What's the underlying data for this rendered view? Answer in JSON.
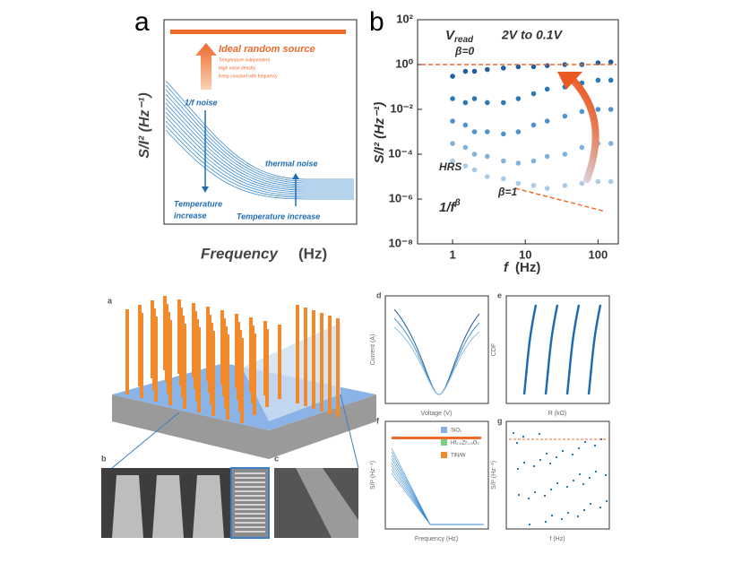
{
  "panel_a": {
    "label": "a",
    "title": "Ideal random source",
    "notes": [
      "Temperature independent",
      "High noise density",
      "Keep constant with frequency"
    ],
    "flicker": "1/f noise",
    "thermal": "thermal noise",
    "temp_left": [
      "Temperature",
      "increase"
    ],
    "temp_right": "Temperature increase",
    "y_label": "S/I² (Hz⁻¹)",
    "x_label": "Frequency",
    "x_unit": "(Hz)"
  },
  "panel_b": {
    "type": "scatter",
    "label": "b",
    "y_label": "S/I² (Hz⁻¹)",
    "x_label": "f",
    "x_unit": "(Hz)",
    "log_x": true,
    "log_y": true,
    "annotations": {
      "vread": "V",
      "vread_sub": "read",
      "range": "2V to 0.1V",
      "beta0": "β=0",
      "hrs": "HRS",
      "beta1": "β=1",
      "flicker": "1/f",
      "flicker_sup": "β"
    },
    "xlim": [
      0.33,
      190
    ],
    "ylim": [
      1e-08,
      100
    ],
    "xticks": [
      1,
      10,
      100
    ],
    "yticks": [
      {
        "value": 100,
        "label": "10²"
      },
      {
        "value": 1,
        "label": "10⁰"
      },
      {
        "value": 0.01,
        "label": "10⁻²"
      },
      {
        "value": 0.0001,
        "label": "10⁻⁴"
      },
      {
        "value": 1e-06,
        "label": "10⁻⁶"
      },
      {
        "value": 1e-08,
        "label": "10⁻⁸"
      }
    ],
    "x": [
      1,
      1.5,
      2,
      3,
      5,
      8,
      13,
      20,
      35,
      60,
      100,
      150
    ],
    "series": [
      {
        "color": "#1f5f9e",
        "values": [
          0.3,
          0.5,
          0.5,
          0.6,
          0.7,
          0.8,
          0.8,
          0.9,
          1,
          1,
          1.2,
          1.3
        ]
      },
      {
        "color": "#2a78b8",
        "values": [
          0.03,
          0.02,
          0.03,
          0.02,
          0.02,
          0.03,
          0.05,
          0.08,
          0.1,
          0.15,
          0.2,
          0.2
        ]
      },
      {
        "color": "#4f93cc",
        "values": [
          0.003,
          0.002,
          0.001,
          0.001,
          0.0008,
          0.001,
          0.002,
          0.003,
          0.005,
          0.008,
          0.01,
          0.01
        ]
      },
      {
        "color": "#7fb3dd",
        "values": [
          0.0003,
          0.0002,
          0.0001,
          8e-05,
          5e-05,
          4e-05,
          5e-05,
          8e-05,
          0.0001,
          0.0002,
          0.0003,
          0.0003
        ]
      },
      {
        "color": "#aacbe8",
        "values": [
          5e-05,
          3e-05,
          2e-05,
          1e-05,
          8e-06,
          5e-06,
          4e-06,
          3e-06,
          4e-06,
          5e-06,
          6e-06,
          6e-06
        ]
      }
    ]
  },
  "device": {
    "labels": [
      "a",
      "b",
      "c"
    ],
    "legend": [
      "SiO₂",
      "Hf₀.₅Zr₀.₅O₂",
      "TiN/W"
    ]
  },
  "small": {
    "labels": [
      "d",
      "e",
      "f",
      "g"
    ],
    "d_y": "Current (A)",
    "d_x": "Voltage (V)",
    "e_y": "CDF",
    "e_x": "R (kΩ)",
    "f_y": "S/I² (Hz⁻¹)",
    "f_x": "Frequency (Hz)",
    "g_y": "S/I² (Hz⁻¹)",
    "g_x": "f (Hz)"
  }
}
